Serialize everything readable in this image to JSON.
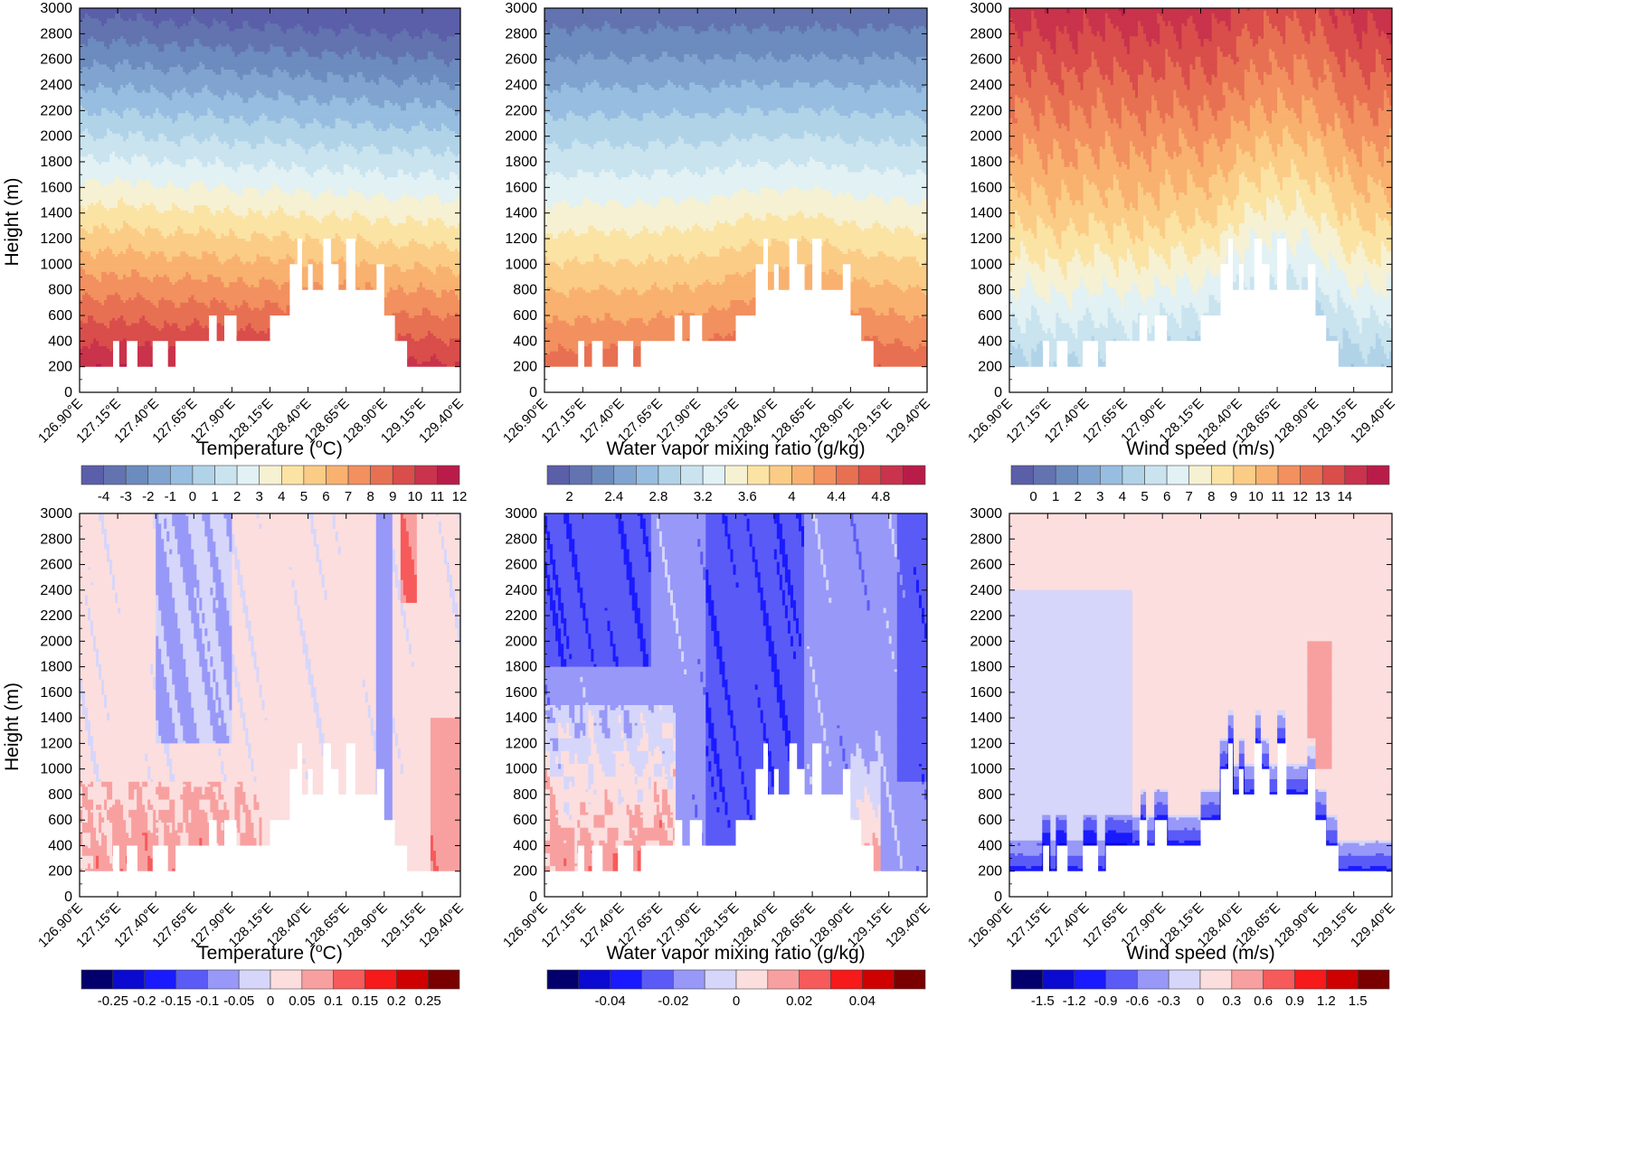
{
  "chart_data": [
    {
      "type": "contour",
      "panel": "top-left",
      "title": "",
      "xlabel": "Temperature (°C)",
      "xlabel_main": "Temperature (",
      "xlabel_sup": "o",
      "xlabel_tail": "C)",
      "ylabel": "Height (m)",
      "xlim": [
        126.9,
        129.4
      ],
      "ylim": [
        0,
        3000
      ],
      "x_ticks": [
        "126.90°E",
        "127.15°E",
        "127.40°E",
        "127.65°E",
        "127.90°E",
        "128.15°E",
        "128.40°E",
        "128.65°E",
        "128.90°E",
        "129.15°E",
        "129.40°E"
      ],
      "y_ticks": [
        "0",
        "200",
        "400",
        "600",
        "800",
        "1000",
        "1200",
        "1400",
        "1600",
        "1800",
        "2000",
        "2200",
        "2400",
        "2600",
        "2800",
        "3000"
      ],
      "colorbar": {
        "colors": [
          "#5b5ea8",
          "#6273b0",
          "#6c8bbe",
          "#80a4cf",
          "#97bde0",
          "#b1d3e8",
          "#c9e3ef",
          "#e1f1f4",
          "#f6f1d3",
          "#fbe3a4",
          "#fbcc86",
          "#f9b16f",
          "#f2905f",
          "#e87052",
          "#d94d4b",
          "#c9334b",
          "#b91c49"
        ],
        "labels": [
          "-4",
          "-3",
          "-2",
          "-1",
          "0",
          "1",
          "2",
          "3",
          "4",
          "5",
          "6",
          "7",
          "8",
          "9",
          "10",
          "11",
          "12"
        ]
      },
      "value_range": [
        -4.5,
        12.5
      ],
      "trend": "decreasing with height; warm (10-12) near 200-400 m, cold (-4) near 3000 m"
    },
    {
      "type": "contour",
      "panel": "top-middle",
      "xlabel": "Water vapor mixing ratio (g/kg)",
      "ylabel": "",
      "xlim": [
        126.9,
        129.4
      ],
      "ylim": [
        0,
        3000
      ],
      "x_ticks": [
        "126.90°E",
        "127.15°E",
        "127.40°E",
        "127.65°E",
        "127.90°E",
        "128.15°E",
        "128.40°E",
        "128.65°E",
        "128.90°E",
        "129.15°E",
        "129.40°E"
      ],
      "y_ticks": [
        "0",
        "200",
        "400",
        "600",
        "800",
        "1000",
        "1200",
        "1400",
        "1600",
        "1800",
        "2000",
        "2200",
        "2400",
        "2600",
        "2800",
        "3000"
      ],
      "colorbar": {
        "colors": [
          "#5b5ea8",
          "#6273b0",
          "#6c8bbe",
          "#80a4cf",
          "#97bde0",
          "#b1d3e8",
          "#c9e3ef",
          "#e1f1f4",
          "#f6f1d3",
          "#fbe3a4",
          "#fbcc86",
          "#f9b16f",
          "#f2905f",
          "#e87052",
          "#d94d4b",
          "#c9334b",
          "#b91c49"
        ],
        "labels": [
          "2",
          "2.4",
          "2.8",
          "3.2",
          "3.6",
          "4",
          "4.4",
          "4.8"
        ]
      },
      "value_range": [
        1.8,
        5.2
      ],
      "trend": "decreasing with height; about 4.6 g/kg near surface, about 2 g/kg at 3000 m"
    },
    {
      "type": "contour",
      "panel": "top-right",
      "xlabel": "Wind speed (m/s)",
      "ylabel": "",
      "xlim": [
        126.9,
        129.4
      ],
      "ylim": [
        0,
        3000
      ],
      "x_ticks": [
        "126.90°E",
        "127.15°E",
        "127.40°E",
        "127.65°E",
        "127.90°E",
        "128.15°E",
        "128.40°E",
        "128.65°E",
        "128.90°E",
        "129.15°E",
        "129.40°E"
      ],
      "y_ticks": [
        "0",
        "200",
        "400",
        "600",
        "800",
        "1000",
        "1200",
        "1400",
        "1600",
        "1800",
        "2000",
        "2200",
        "2400",
        "2600",
        "2800",
        "3000"
      ],
      "colorbar": {
        "colors": [
          "#5b5ea8",
          "#6273b0",
          "#6c8bbe",
          "#80a4cf",
          "#97bde0",
          "#b1d3e8",
          "#c9e3ef",
          "#e1f1f4",
          "#f6f1d3",
          "#fbe3a4",
          "#fbcc86",
          "#f9b16f",
          "#f2905f",
          "#e87052",
          "#d94d4b",
          "#c9334b",
          "#b91c49"
        ],
        "labels": [
          "0",
          "1",
          "2",
          "3",
          "4",
          "5",
          "6",
          "7",
          "8",
          "9",
          "10",
          "11",
          "12",
          "13",
          "14"
        ]
      },
      "value_range": [
        -0.5,
        15.5
      ],
      "trend": "increasing with height; about 4 m/s near surface, about 12-13 m/s at 3000 m"
    },
    {
      "type": "contour",
      "panel": "bottom-left",
      "xlabel": "Temperature (°C)",
      "xlabel_main": "Temperature (",
      "xlabel_sup": "o",
      "xlabel_tail": "C)",
      "ylabel": "Height (m)",
      "xlim": [
        126.9,
        129.4
      ],
      "ylim": [
        0,
        3000
      ],
      "x_ticks": [
        "126.90°E",
        "127.15°E",
        "127.40°E",
        "127.65°E",
        "127.90°E",
        "128.15°E",
        "128.40°E",
        "128.65°E",
        "128.90°E",
        "129.15°E",
        "129.40°E"
      ],
      "y_ticks": [
        "0",
        "200",
        "400",
        "600",
        "800",
        "1000",
        "1200",
        "1400",
        "1600",
        "1800",
        "2000",
        "2200",
        "2400",
        "2600",
        "2800",
        "3000"
      ],
      "colorbar": {
        "colors": [
          "#03006e",
          "#0a0ad0",
          "#1a1aff",
          "#5a5af7",
          "#9898f8",
          "#d6d6fb",
          "#fcdede",
          "#f8a0a0",
          "#f75a5a",
          "#f61a1a",
          "#cf0000",
          "#7a0000"
        ],
        "labels": [
          "-0.25",
          "-0.2",
          "-0.15",
          "-0.1",
          "-0.05",
          "0",
          "0.05",
          "0.1",
          "0.15",
          "0.2",
          "0.25"
        ]
      },
      "value_range": [
        -0.3,
        0.3
      ],
      "trend": "difference field; mostly near 0 (-0.05 to 0.05), positive patches below 800 m"
    },
    {
      "type": "contour",
      "panel": "bottom-middle",
      "xlabel": "Water vapor mixing ratio (g/kg)",
      "ylabel": "",
      "xlim": [
        126.9,
        129.4
      ],
      "ylim": [
        0,
        3000
      ],
      "x_ticks": [
        "126.90°E",
        "127.15°E",
        "127.40°E",
        "127.65°E",
        "127.90°E",
        "128.15°E",
        "128.40°E",
        "128.65°E",
        "128.90°E",
        "129.15°E",
        "129.40°E"
      ],
      "y_ticks": [
        "0",
        "200",
        "400",
        "600",
        "800",
        "1000",
        "1200",
        "1400",
        "1600",
        "1800",
        "2000",
        "2200",
        "2400",
        "2600",
        "2800",
        "3000"
      ],
      "colorbar": {
        "colors": [
          "#03006e",
          "#0a0ad0",
          "#1a1aff",
          "#5a5af7",
          "#9898f8",
          "#d6d6fb",
          "#fcdede",
          "#f8a0a0",
          "#f75a5a",
          "#f61a1a",
          "#cf0000",
          "#7a0000"
        ],
        "labels": [
          "-0.04",
          "-0.02",
          "0",
          "0.02",
          "0.04"
        ]
      },
      "value_range": [
        -0.06,
        0.06
      ],
      "trend": "difference field; negative (-0.02 to -0.04) aloft and east, positive (0.02-0.04) below 1400 m in the west"
    },
    {
      "type": "contour",
      "panel": "bottom-right",
      "xlabel": "Wind speed (m/s)",
      "ylabel": "",
      "xlim": [
        126.9,
        129.4
      ],
      "ylim": [
        0,
        3000
      ],
      "x_ticks": [
        "126.90°E",
        "127.15°E",
        "127.40°E",
        "127.65°E",
        "127.90°E",
        "128.15°E",
        "128.40°E",
        "128.65°E",
        "128.90°E",
        "129.15°E",
        "129.40°E"
      ],
      "y_ticks": [
        "0",
        "200",
        "400",
        "600",
        "800",
        "1000",
        "1200",
        "1400",
        "1600",
        "1800",
        "2000",
        "2200",
        "2400",
        "2600",
        "2800",
        "3000"
      ],
      "colorbar": {
        "colors": [
          "#03006e",
          "#0a0ad0",
          "#1a1aff",
          "#5a5af7",
          "#9898f8",
          "#d6d6fb",
          "#fcdede",
          "#f8a0a0",
          "#f75a5a",
          "#f61a1a",
          "#cf0000",
          "#7a0000"
        ],
        "labels": [
          "-1.5",
          "-1.2",
          "-0.9",
          "-0.6",
          "-0.3",
          "0",
          "0.3",
          "0.6",
          "0.9",
          "1.2",
          "1.5"
        ]
      },
      "value_range": [
        -1.8,
        1.8
      ],
      "trend": "difference field; slightly positive (0 to 0.3) aloft, negative (-0.3 to -1.2) within 200 m of terrain"
    }
  ],
  "terrain_mask": [
    [
      126.9,
      200
    ],
    [
      127.12,
      200
    ],
    [
      127.12,
      400
    ],
    [
      127.16,
      400
    ],
    [
      127.16,
      200
    ],
    [
      127.21,
      200
    ],
    [
      127.21,
      400
    ],
    [
      127.28,
      400
    ],
    [
      127.28,
      200
    ],
    [
      127.38,
      200
    ],
    [
      127.38,
      400
    ],
    [
      127.48,
      400
    ],
    [
      127.48,
      200
    ],
    [
      127.53,
      200
    ],
    [
      127.53,
      400
    ],
    [
      127.75,
      400
    ],
    [
      127.75,
      600
    ],
    [
      127.8,
      600
    ],
    [
      127.8,
      400
    ],
    [
      127.85,
      400
    ],
    [
      127.85,
      600
    ],
    [
      127.93,
      600
    ],
    [
      127.93,
      400
    ],
    [
      128.15,
      400
    ],
    [
      128.15,
      600
    ],
    [
      128.28,
      600
    ],
    [
      128.28,
      1000
    ],
    [
      128.33,
      1000
    ],
    [
      128.33,
      1200
    ],
    [
      128.36,
      1200
    ],
    [
      128.36,
      800
    ],
    [
      128.4,
      800
    ],
    [
      128.4,
      1000
    ],
    [
      128.43,
      1000
    ],
    [
      128.43,
      800
    ],
    [
      128.5,
      800
    ],
    [
      128.5,
      1200
    ],
    [
      128.55,
      1200
    ],
    [
      128.55,
      1000
    ],
    [
      128.6,
      1000
    ],
    [
      128.6,
      800
    ],
    [
      128.65,
      800
    ],
    [
      128.65,
      1200
    ],
    [
      128.71,
      1200
    ],
    [
      128.71,
      800
    ],
    [
      128.85,
      800
    ],
    [
      128.85,
      1000
    ],
    [
      128.9,
      1000
    ],
    [
      128.9,
      600
    ],
    [
      128.97,
      600
    ],
    [
      128.97,
      400
    ],
    [
      129.05,
      400
    ],
    [
      129.05,
      200
    ],
    [
      129.4,
      200
    ]
  ]
}
